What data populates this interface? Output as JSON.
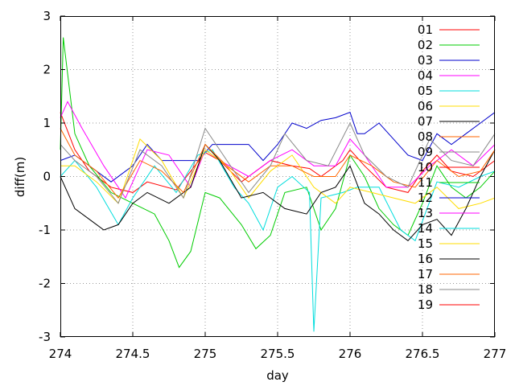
{
  "chart_data": {
    "type": "line",
    "title": "",
    "xlabel": "day",
    "ylabel": "diff(m)",
    "xlim": [
      274,
      277
    ],
    "ylim": [
      -3,
      3
    ],
    "xticks": [
      "274",
      "274.5",
      "275",
      "275.5",
      "276",
      "276.5",
      "277"
    ],
    "yticks": [
      "-3",
      "-2",
      "-1",
      "0",
      "1",
      "2",
      "3"
    ],
    "grid": true,
    "legend_position": "right",
    "series": [
      {
        "name": "01",
        "color": "#ff0000",
        "x": [
          274,
          274.1,
          274.2,
          274.35,
          274.5,
          274.6,
          274.8,
          275,
          275.1,
          275.25,
          275.35,
          275.45,
          275.6,
          275.72,
          275.8,
          275.95,
          276,
          276.1,
          276.25,
          276.4,
          276.5,
          276.6,
          276.7,
          276.85,
          277
        ],
        "y": [
          1.2,
          0.5,
          0.1,
          -0.2,
          -0.3,
          -0.1,
          -0.25,
          0.45,
          0.3,
          -0.1,
          0.1,
          0.3,
          0.2,
          0.15,
          0.0,
          0.3,
          0.5,
          0.2,
          -0.2,
          -0.3,
          0.1,
          0.4,
          0.1,
          0.0,
          0.3
        ]
      },
      {
        "name": "02",
        "color": "#00cc00",
        "x": [
          274,
          274.02,
          274.1,
          274.2,
          274.35,
          274.5,
          274.65,
          274.75,
          274.82,
          274.9,
          275,
          275.1,
          275.25,
          275.35,
          275.45,
          275.55,
          275.7,
          275.8,
          275.9,
          276,
          276.1,
          276.2,
          276.3,
          276.4,
          276.5,
          276.6,
          276.7,
          276.8,
          276.9,
          277
        ],
        "y": [
          0.5,
          2.6,
          0.8,
          0.2,
          -0.3,
          -0.5,
          -0.7,
          -1.2,
          -1.7,
          -1.4,
          -0.3,
          -0.4,
          -0.9,
          -1.35,
          -1.1,
          -0.3,
          -0.2,
          -1.0,
          -0.6,
          0.4,
          0.0,
          -0.6,
          -0.9,
          -1.1,
          -0.5,
          0.2,
          -0.2,
          -0.4,
          -0.2,
          0.1
        ]
      },
      {
        "name": "03",
        "color": "#0000cc",
        "x": [
          274,
          274.1,
          274.2,
          274.35,
          274.5,
          274.6,
          274.7,
          274.8,
          274.95,
          275.05,
          275.2,
          275.3,
          275.4,
          275.5,
          275.6,
          275.7,
          275.8,
          275.9,
          276,
          276.05,
          276.1,
          276.2,
          276.3,
          276.4,
          276.5,
          276.6,
          276.7,
          276.8,
          276.9,
          277
        ],
        "y": [
          0.3,
          0.4,
          0.2,
          -0.1,
          0.2,
          0.6,
          0.3,
          0.3,
          0.3,
          0.6,
          0.6,
          0.6,
          0.3,
          0.6,
          1.0,
          0.9,
          1.05,
          1.1,
          1.2,
          0.8,
          0.8,
          1.0,
          0.7,
          0.4,
          0.3,
          0.8,
          0.6,
          0.8,
          1.0,
          1.2
        ]
      },
      {
        "name": "04",
        "color": "#ff00ff",
        "x": [
          274,
          274.05,
          274.15,
          274.3,
          274.45,
          274.6,
          274.75,
          274.9,
          275,
          275.1,
          275.3,
          275.45,
          275.6,
          275.75,
          275.9,
          276,
          276.1,
          276.25,
          276.4,
          276.55,
          276.7,
          276.85,
          277
        ],
        "y": [
          1.1,
          1.4,
          0.9,
          0.2,
          -0.4,
          0.5,
          0.4,
          -0.2,
          0.5,
          0.3,
          0.0,
          0.3,
          0.5,
          0.2,
          0.2,
          0.7,
          0.4,
          -0.2,
          -0.2,
          0.2,
          0.5,
          0.2,
          0.6
        ]
      },
      {
        "name": "05",
        "color": "#00dddd",
        "x": [
          274,
          274.1,
          274.25,
          274.4,
          274.5,
          274.65,
          274.8,
          274.95,
          275.05,
          275.2,
          275.3,
          275.4,
          275.5,
          275.6,
          275.72,
          275.75,
          275.8,
          275.95,
          276.05,
          276.2,
          276.35,
          276.45,
          276.6,
          276.75,
          276.9,
          277
        ],
        "y": [
          0.0,
          0.3,
          -0.2,
          -0.9,
          -0.4,
          0.2,
          -0.3,
          0.4,
          0.5,
          -0.2,
          -0.5,
          -1.0,
          -0.2,
          0.0,
          -0.3,
          -2.9,
          -0.4,
          -0.3,
          -0.2,
          -0.2,
          -1.0,
          -1.2,
          -0.1,
          -0.2,
          0.0,
          0.1
        ]
      },
      {
        "name": "06",
        "color": "#ffdd00",
        "x": [
          274,
          274.1,
          274.25,
          274.4,
          274.55,
          274.7,
          274.85,
          275,
          275.15,
          275.3,
          275.45,
          275.6,
          275.75,
          275.9,
          276,
          276.15,
          276.3,
          276.45,
          276.6,
          276.75,
          276.9,
          277
        ],
        "y": [
          0.2,
          0.2,
          -0.1,
          -0.5,
          0.7,
          0.3,
          -0.4,
          0.5,
          0.2,
          -0.4,
          0.1,
          0.4,
          -0.2,
          -0.5,
          -0.2,
          -0.3,
          -0.4,
          -0.5,
          -0.2,
          -0.6,
          -0.5,
          -0.4
        ]
      },
      {
        "name": "07",
        "color": "#000000",
        "x": [
          274,
          274.1,
          274.2,
          274.3,
          274.4,
          274.5,
          274.6,
          274.75,
          274.9,
          275,
          275.1,
          275.25,
          275.4,
          275.55,
          275.7,
          275.8,
          275.9,
          276,
          276.1,
          276.2,
          276.3,
          276.4,
          276.5,
          276.6,
          276.7,
          276.8,
          276.9,
          277
        ],
        "y": [
          0.0,
          -0.6,
          -0.8,
          -1.0,
          -0.9,
          -0.5,
          -0.3,
          -0.5,
          -0.2,
          0.6,
          0.3,
          -0.4,
          -0.3,
          -0.6,
          -0.7,
          -0.3,
          -0.2,
          0.2,
          -0.5,
          -0.7,
          -1.0,
          -1.2,
          -0.9,
          -0.8,
          -1.1,
          -0.6,
          0.0,
          0.5
        ]
      },
      {
        "name": "08",
        "color": "#ff6600",
        "x": [
          274,
          274.1,
          274.25,
          274.4,
          274.55,
          274.7,
          274.85,
          275,
          275.15,
          275.3,
          275.45,
          275.6,
          275.75,
          275.9,
          276,
          276.15,
          276.3,
          276.45,
          276.6,
          276.75,
          276.9,
          277
        ],
        "y": [
          0.9,
          0.4,
          0.1,
          -0.4,
          0.3,
          0.1,
          -0.3,
          0.6,
          0.2,
          -0.1,
          0.2,
          0.2,
          0.0,
          0.0,
          0.4,
          0.2,
          -0.1,
          -0.2,
          0.3,
          0.0,
          0.1,
          0.5
        ]
      },
      {
        "name": "09",
        "color": "#888888",
        "x": [
          274,
          274.1,
          274.25,
          274.4,
          274.55,
          274.7,
          274.85,
          275,
          275.15,
          275.3,
          275.45,
          275.55,
          275.7,
          275.85,
          276,
          276.1,
          276.25,
          276.4,
          276.55,
          276.7,
          276.85,
          277
        ],
        "y": [
          0.6,
          0.3,
          0.0,
          -0.5,
          0.5,
          0.2,
          -0.4,
          0.9,
          0.3,
          -0.3,
          0.2,
          0.8,
          0.3,
          0.2,
          1.0,
          0.4,
          0.0,
          -0.2,
          0.7,
          0.3,
          0.2,
          0.8
        ]
      }
    ],
    "legend_entries": [
      {
        "name": "01",
        "color": "#ff0000"
      },
      {
        "name": "02",
        "color": "#00cc00"
      },
      {
        "name": "03",
        "color": "#0000cc"
      },
      {
        "name": "04",
        "color": "#ff00ff"
      },
      {
        "name": "05",
        "color": "#00dddd"
      },
      {
        "name": "06",
        "color": "#ffdd00"
      },
      {
        "name": "07",
        "color": "#000000"
      },
      {
        "name": "08",
        "color": "#ff6600"
      },
      {
        "name": "09",
        "color": "#888888"
      },
      {
        "name": "10",
        "color": "#ff0000"
      },
      {
        "name": "11",
        "color": "#00cc00"
      },
      {
        "name": "12",
        "color": "#0000cc"
      },
      {
        "name": "13",
        "color": "#ff00ff"
      },
      {
        "name": "14",
        "color": "#00dddd"
      },
      {
        "name": "15",
        "color": "#ffdd00"
      },
      {
        "name": "16",
        "color": "#000000"
      },
      {
        "name": "17",
        "color": "#ff6600"
      },
      {
        "name": "18",
        "color": "#888888"
      },
      {
        "name": "19",
        "color": "#ff0000"
      }
    ]
  }
}
